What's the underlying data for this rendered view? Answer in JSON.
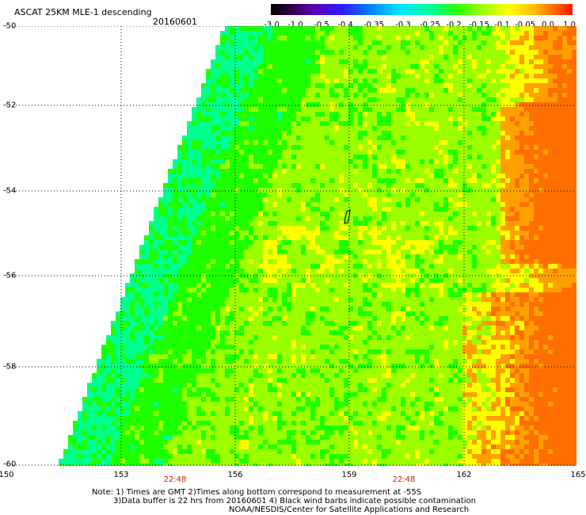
{
  "header": {
    "title": "ASCAT 25KM MLE-1 descending",
    "date": "20160601"
  },
  "colorbar": {
    "labels": [
      "-3.0",
      "-1.0",
      "-0.5",
      "-0.4",
      "-0.35",
      "-0.3",
      "-0.25",
      "-0.2",
      "-0.15",
      "-0.1",
      "-0.05",
      "0.0",
      "1.0"
    ]
  },
  "axes": {
    "y_labels": [
      "-50",
      "-52",
      "-54",
      "-56",
      "-58",
      "-60"
    ],
    "x_labels": [
      "150",
      "153",
      "156",
      "159",
      "162",
      "165"
    ],
    "time_labels": [
      "22:48",
      "22:48"
    ]
  },
  "note": {
    "line1": "Note: 1) Times are GMT 2)Times along bottom correspond to measurement at -55S",
    "line2": "3)Data buffer is 22 hrs from 20160601 4) Black wind barbs indicate possible contamination",
    "line3": "NOAA/NESDIS/Center for Satellite Applications and Research"
  },
  "map": {
    "lon_range": [
      150,
      165
    ],
    "lat_range": [
      -60,
      -50
    ],
    "palette": {
      "cyan": "#00ffd2",
      "green_cyan": "#00ff8c",
      "green": "#1eff00",
      "yellow_green": "#9bff00",
      "yellow": "#ffff00",
      "orange": "#ffa000",
      "dark_orange": "#ff6e00"
    }
  }
}
